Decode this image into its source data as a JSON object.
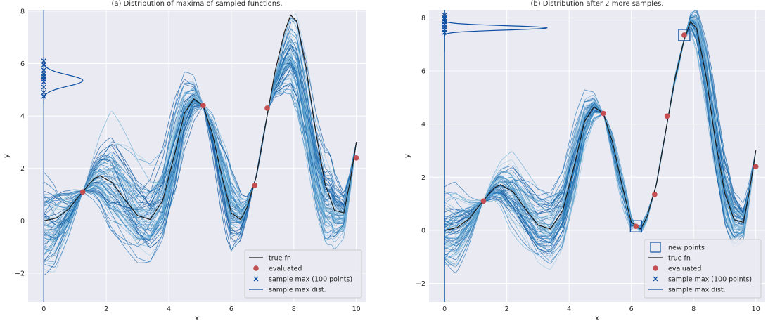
{
  "chart_data": [
    {
      "type": "line",
      "title": "(a) Distribution of maxima of sampled functions.",
      "xlabel": "x",
      "ylabel": "y",
      "xlim": [
        -0.5,
        10.3
      ],
      "ylim": [
        -3.1,
        8.05
      ],
      "xticks": [
        0,
        2,
        4,
        6,
        8,
        10
      ],
      "yticks": [
        -2,
        0,
        2,
        4,
        6,
        8
      ],
      "xtick_labels": [
        "0",
        "2",
        "4",
        "6",
        "8",
        "10"
      ],
      "ytick_labels": [
        "−2",
        "0",
        "2",
        "4",
        "6",
        "8"
      ],
      "grid": true,
      "legend_position": "lower-right",
      "true_fn": {
        "x": [
          0,
          0.4,
          0.8,
          1.2,
          1.6,
          1.8,
          2.2,
          2.6,
          3.0,
          3.4,
          3.8,
          4.2,
          4.5,
          4.8,
          5.1,
          5.4,
          5.7,
          6.0,
          6.3,
          6.5,
          6.8,
          7.1,
          7.4,
          7.7,
          7.9,
          8.1,
          8.4,
          8.7,
          9.0,
          9.3,
          9.6,
          9.8,
          10.0
        ],
        "y": [
          0.0,
          0.1,
          0.45,
          1.05,
          1.6,
          1.72,
          1.45,
          0.8,
          0.2,
          0.05,
          0.75,
          2.6,
          4.1,
          4.65,
          4.4,
          3.3,
          1.7,
          0.3,
          0.05,
          0.5,
          1.7,
          3.7,
          5.7,
          7.2,
          7.85,
          7.6,
          5.8,
          3.4,
          1.4,
          0.4,
          0.3,
          1.5,
          3.0
        ]
      },
      "evaluated": {
        "x": [
          1.25,
          5.1,
          6.75,
          7.15,
          10.0
        ],
        "y": [
          1.1,
          4.4,
          1.35,
          4.3,
          2.4
        ]
      },
      "sample_max": {
        "x": [
          0,
          0,
          0,
          0,
          0,
          0,
          0,
          0,
          0,
          0
        ],
        "y": [
          4.75,
          4.9,
          5.1,
          5.3,
          5.4,
          5.5,
          5.6,
          5.75,
          5.95,
          6.1
        ]
      },
      "sample_max_dist": {
        "center": 5.35,
        "peak_x": 1.25
      }
    },
    {
      "type": "line",
      "title": "(b) Distribution after 2 more samples.",
      "xlabel": "x",
      "ylabel": "y",
      "xlim": [
        -0.5,
        10.3
      ],
      "ylim": [
        -2.7,
        8.3
      ],
      "xticks": [
        0,
        2,
        4,
        6,
        8,
        10
      ],
      "yticks": [
        -2,
        0,
        2,
        4,
        6,
        8
      ],
      "xtick_labels": [
        "0",
        "2",
        "4",
        "6",
        "8",
        "10"
      ],
      "ytick_labels": [
        "−2",
        "0",
        "2",
        "4",
        "6",
        "8"
      ],
      "grid": true,
      "legend_position": "lower-right",
      "true_fn": {
        "x": [
          0,
          0.4,
          0.8,
          1.2,
          1.6,
          1.8,
          2.2,
          2.6,
          3.0,
          3.4,
          3.8,
          4.2,
          4.5,
          4.8,
          5.1,
          5.4,
          5.7,
          6.0,
          6.3,
          6.5,
          6.8,
          7.1,
          7.4,
          7.7,
          7.9,
          8.1,
          8.4,
          8.7,
          9.0,
          9.3,
          9.6,
          9.8,
          10.0
        ],
        "y": [
          0.0,
          0.1,
          0.45,
          1.05,
          1.6,
          1.72,
          1.45,
          0.8,
          0.2,
          0.05,
          0.75,
          2.6,
          4.1,
          4.65,
          4.4,
          3.3,
          1.7,
          0.3,
          0.05,
          0.5,
          1.7,
          3.7,
          5.7,
          7.2,
          7.85,
          7.6,
          5.8,
          3.4,
          1.4,
          0.4,
          0.3,
          1.5,
          3.0
        ]
      },
      "evaluated": {
        "x": [
          1.25,
          5.1,
          6.15,
          6.75,
          7.15,
          7.7,
          10.0
        ],
        "y": [
          1.1,
          4.4,
          0.15,
          1.35,
          4.3,
          7.35,
          2.4
        ]
      },
      "new_points": {
        "x": [
          6.15,
          7.7
        ],
        "y": [
          0.15,
          7.35
        ]
      },
      "sample_max": {
        "x": [
          0,
          0,
          0,
          0,
          0,
          0,
          0,
          0
        ],
        "y": [
          7.45,
          7.55,
          7.65,
          7.75,
          7.85,
          7.95,
          8.0,
          8.1
        ]
      },
      "sample_max_dist": {
        "center": 7.62,
        "peak_x": 3.3
      }
    }
  ],
  "legend_a": [
    {
      "label": "true fn",
      "kind": "line"
    },
    {
      "label": "evaluated",
      "kind": "dot"
    },
    {
      "label": "sample max (100 points)",
      "kind": "cross"
    },
    {
      "label": "sample max dist.",
      "kind": "line-blue"
    }
  ],
  "legend_b": [
    {
      "label": "new points",
      "kind": "square"
    },
    {
      "label": "true fn",
      "kind": "line"
    },
    {
      "label": "evaluated",
      "kind": "dot"
    },
    {
      "label": "sample max (100 points)",
      "kind": "cross"
    },
    {
      "label": "sample max dist.",
      "kind": "line-blue"
    }
  ],
  "colors": {
    "background": "#eaeaf2",
    "grid": "#ffffff",
    "true_fn": "#1a1a1a",
    "evaluated": "#c44e52",
    "sample_max": "#0b4ea2",
    "samples": [
      "#08519c",
      "#2171b5",
      "#4292c6",
      "#6baed6",
      "#9ecae1"
    ]
  }
}
